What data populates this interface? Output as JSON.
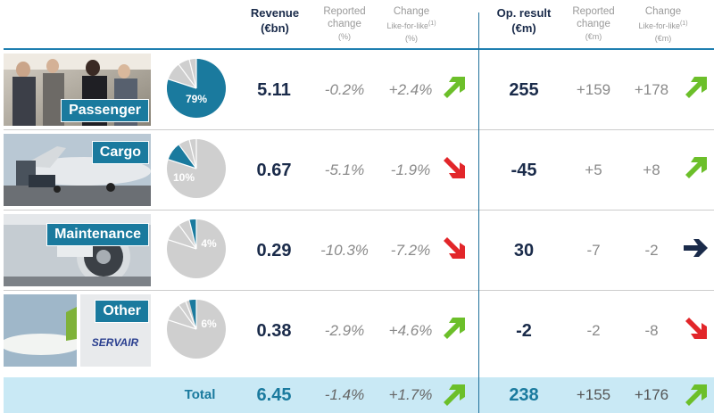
{
  "header": {
    "revenue": [
      "Revenue",
      "(€bn)"
    ],
    "reported_change": [
      "Reported",
      "change",
      "(%)"
    ],
    "lfl_change": [
      "Change",
      "Like-for-like",
      "(1)",
      "(%)"
    ],
    "op_result": [
      "Op. result",
      "(€m)"
    ],
    "op_reported": [
      "Reported",
      "change",
      "(€m)"
    ],
    "op_lfl": [
      "Change",
      "Like-for-like",
      "(1)",
      "(€m)"
    ]
  },
  "rows": [
    {
      "segment": "Passenger",
      "share_label": "79%",
      "share": 0.79,
      "revenue": "5.11",
      "reported": "-0.2%",
      "lfl": "+2.4%",
      "arrow1": "up-right-green",
      "op_result": "255",
      "op_reported": "+159",
      "op_lfl": "+178",
      "arrow2": "up-right-green"
    },
    {
      "segment": "Cargo",
      "share_label": "10%",
      "share": 0.1,
      "revenue": "0.67",
      "reported": "-5.1%",
      "lfl": "-1.9%",
      "arrow1": "down-right-red",
      "op_result": "-45",
      "op_reported": "+5",
      "op_lfl": "+8",
      "arrow2": "up-right-green"
    },
    {
      "segment": "Maintenance",
      "share_label": "4%",
      "share": 0.04,
      "revenue": "0.29",
      "reported": "-10.3%",
      "lfl": "-7.2%",
      "arrow1": "down-right-red",
      "op_result": "30",
      "op_reported": "-7",
      "op_lfl": "-2",
      "arrow2": "right-navy"
    },
    {
      "segment": "Other",
      "share_label": "6%",
      "share": 0.06,
      "revenue": "0.38",
      "reported": "-2.9%",
      "lfl": "+4.6%",
      "arrow1": "up-right-green",
      "op_result": "-2",
      "op_reported": "-2",
      "op_lfl": "-8",
      "arrow2": "down-right-red",
      "photo_text": "SERVAIR"
    }
  ],
  "total": {
    "label": "Total",
    "revenue": "6.45",
    "reported": "-1.4%",
    "lfl": "+1.7%",
    "arrow1": "up-right-green",
    "op_result": "238",
    "op_reported": "+155",
    "op_lfl": "+176",
    "arrow2": "up-right-green"
  },
  "colors": {
    "accent": "#1a7a9e",
    "navy": "#1a2b4a",
    "green": "#6cbf2a",
    "red": "#e2262a",
    "total_bg": "#c9e9f5"
  }
}
